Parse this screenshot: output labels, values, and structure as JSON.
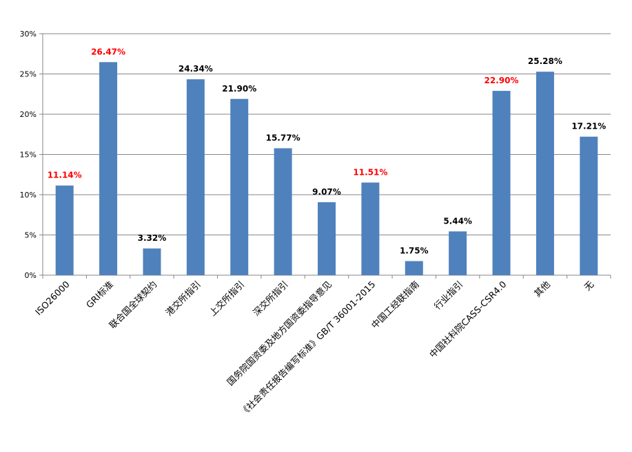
{
  "chart_data": {
    "type": "bar",
    "categories": [
      "ISO26000",
      "GRI标准",
      "联合国全球契约",
      "港交所指引",
      "上交所指引",
      "深交所指引",
      "国务院国资委及地方国资委指导意见",
      "《社会责任报告编写标准》GB/T 36001-2015",
      "中国工经联指南",
      "行业指引",
      "中国社科院CASS-CSR4.0",
      "其他",
      "无"
    ],
    "values": [
      11.14,
      26.47,
      3.32,
      24.34,
      21.9,
      15.77,
      9.07,
      11.51,
      1.75,
      5.44,
      22.9,
      25.28,
      17.21
    ],
    "data_labels": [
      "11.14%",
      "26.47%",
      "3.32%",
      "24.34%",
      "21.90%",
      "15.77%",
      "9.07%",
      "11.51%",
      "1.75%",
      "5.44%",
      "22.90%",
      "25.28%",
      "17.21%"
    ],
    "highlighted": [
      true,
      true,
      false,
      false,
      false,
      false,
      false,
      true,
      false,
      false,
      true,
      false,
      false
    ],
    "y_ticks": [
      "0%",
      "5%",
      "10%",
      "15%",
      "20%",
      "25%",
      "30%"
    ],
    "ylim": [
      0,
      30
    ],
    "grid": true,
    "title": "",
    "xlabel": "",
    "ylabel": ""
  },
  "colors": {
    "bar": "#4f81bd",
    "highlight_label": "#ff0000",
    "normal_label": "#000000",
    "grid": "#868686"
  }
}
